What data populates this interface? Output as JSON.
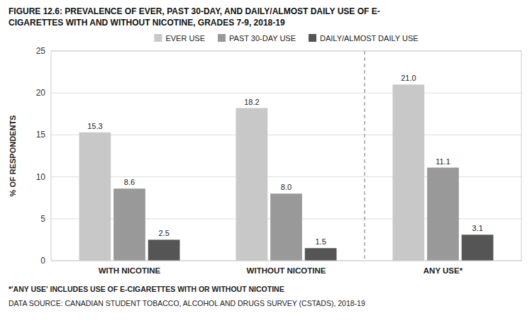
{
  "chart_data": {
    "type": "bar",
    "title": "FIGURE 12.6: PREVALENCE OF EVER, PAST 30-DAY, AND DAILY/ALMOST DAILY USE OF E-",
    "subtitle": "CIGARETTES WITH AND WITHOUT NICOTINE, GRADES 7-9, 2018-19",
    "categories": [
      "WITH NICOTINE",
      "WITHOUT NICOTINE",
      "ANY USE*"
    ],
    "series": [
      {
        "name": "EVER USE",
        "color": "#c8c8c8",
        "values": [
          15.3,
          18.2,
          21.0
        ],
        "value_labels": [
          "15.3",
          "18.2",
          "21.0"
        ]
      },
      {
        "name": "PAST 30-DAY USE",
        "color": "#999999",
        "values": [
          8.6,
          8.0,
          11.1
        ],
        "value_labels": [
          "8.6",
          "8.0",
          "11.1"
        ]
      },
      {
        "name": "DAILY/ALMOST DAILY USE",
        "color": "#555555",
        "values": [
          2.5,
          1.5,
          3.1
        ],
        "value_labels": [
          "2.5",
          "1.5",
          "3.1"
        ]
      }
    ],
    "ylabel": "% OF RESPONDENTS",
    "ylim": [
      0,
      25
    ],
    "yticks": [
      0,
      5,
      10,
      15,
      20,
      25
    ],
    "grid": true,
    "legend": "top",
    "data_labels": true,
    "annotations": [
      "*'ANY USE' INCLUDES USE OF E-CIGARETTES WITH OR WITHOUT NICOTINE",
      "DATA SOURCE: CANADIAN STUDENT TOBACCO, ALCOHOL AND DRUGS SURVEY (CSTADS), 2018-19"
    ]
  }
}
